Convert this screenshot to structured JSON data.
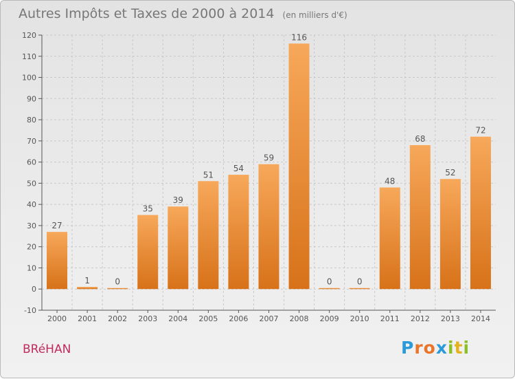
{
  "title": {
    "main": "Autres Impôts et Taxes de 2000 à 2014",
    "unit": "(en milliers d'€)"
  },
  "city": "BRéHAN",
  "logo": {
    "letters": [
      "P",
      "r",
      "o",
      "x",
      "i",
      "t",
      "i"
    ],
    "colors": [
      "#2b9ad8",
      "#e9742a",
      "#e9742a",
      "#2b9ad8",
      "#8cbf26",
      "#e3b21e",
      "#8cbf26"
    ]
  },
  "colors": {
    "bar_top": "#f7a85a",
    "bar_bottom": "#d77219",
    "axis": "#555555",
    "grid": "#c8c8c8",
    "text": "#555555"
  },
  "chart_data": {
    "type": "bar",
    "title": "Autres Impôts et Taxes de 2000 à 2014",
    "ylabel": "(en milliers d'€)",
    "xlabel": "",
    "categories": [
      "2000",
      "2001",
      "2002",
      "2003",
      "2004",
      "2005",
      "2006",
      "2007",
      "2008",
      "2009",
      "2010",
      "2011",
      "2012",
      "2013",
      "2014"
    ],
    "values": [
      27,
      1,
      0,
      35,
      39,
      51,
      54,
      59,
      116,
      0,
      0,
      48,
      68,
      52,
      72
    ],
    "ylim": [
      -10,
      120
    ],
    "yticks": [
      -10,
      0,
      10,
      20,
      30,
      40,
      50,
      60,
      70,
      80,
      90,
      100,
      110,
      120
    ],
    "grid": true,
    "legend": "none"
  }
}
